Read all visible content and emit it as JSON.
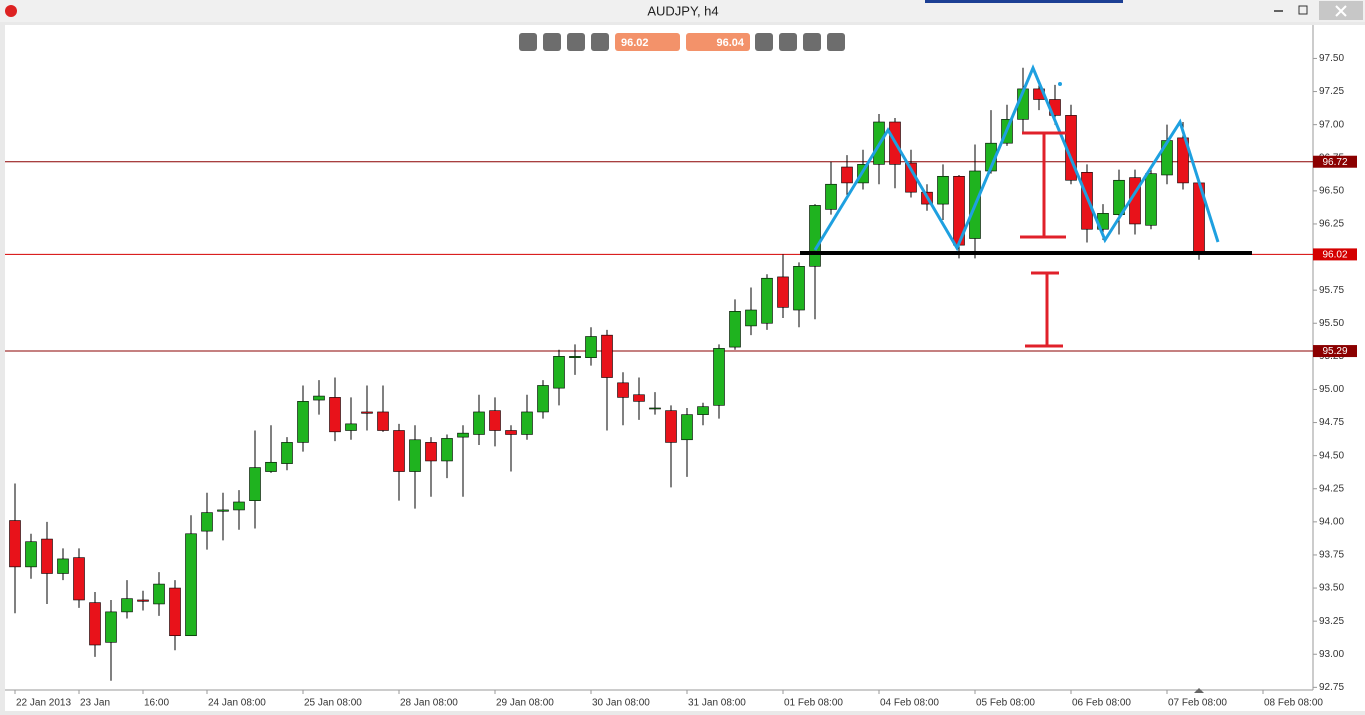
{
  "window": {
    "title": "AUDJPY, h4"
  },
  "toolbar": {
    "bid": "96.02",
    "ask": "96.04"
  },
  "chart_data": {
    "type": "candlestick",
    "categories": [
      "22 Jan 2013",
      null,
      null,
      null,
      "23 Jan",
      null,
      null,
      null,
      "16:00",
      null,
      null,
      null,
      "24 Jan 08:00",
      null,
      null,
      null,
      null,
      null,
      "25 Jan 08:00",
      null,
      null,
      null,
      null,
      null,
      "28 Jan 08:00",
      null,
      null,
      null,
      null,
      null,
      "29 Jan 08:00",
      null,
      null,
      null,
      null,
      null,
      "30 Jan 08:00",
      null,
      null,
      null,
      null,
      null,
      "31 Jan 08:00",
      null,
      null,
      null,
      null,
      null,
      "01 Feb 08:00",
      null,
      null,
      null,
      null,
      null,
      "04 Feb 08:00",
      null,
      null,
      null,
      null,
      null,
      "05 Feb 08:00",
      null,
      null,
      null,
      null,
      null,
      "06 Feb 08:00",
      null,
      null,
      null,
      null,
      null,
      "07 Feb 08:00",
      null,
      null,
      null,
      null,
      null,
      "08 Feb 08:00"
    ],
    "open": [
      94.01,
      93.66,
      93.87,
      93.61,
      93.73,
      93.39,
      93.09,
      93.32,
      93.41,
      93.38,
      93.5,
      93.14,
      93.93,
      94.08,
      94.09,
      94.16,
      94.38,
      94.44,
      94.6,
      94.92,
      94.94,
      94.69,
      94.83,
      94.83,
      94.69,
      94.38,
      94.6,
      94.46,
      94.64,
      94.66,
      94.84,
      94.69,
      94.66,
      94.83,
      95.01,
      95.24,
      95.24,
      95.41,
      95.05,
      94.96,
      94.86,
      94.84,
      94.62,
      94.81,
      94.88,
      95.32,
      95.48,
      95.5,
      95.85,
      95.6,
      95.93,
      96.36,
      96.68,
      96.56,
      96.7,
      97.02,
      96.71,
      96.49,
      96.4,
      96.61,
      96.14,
      96.65,
      96.86,
      97.04,
      97.27,
      97.19,
      97.07,
      96.64,
      96.21,
      96.32,
      96.6,
      96.24,
      96.62,
      96.9,
      96.56,
      null,
      null,
      null,
      null
    ],
    "high": [
      94.29,
      93.91,
      94.0,
      93.8,
      93.8,
      93.47,
      93.41,
      93.56,
      93.48,
      93.62,
      93.56,
      94.05,
      94.22,
      94.22,
      94.24,
      94.69,
      94.73,
      94.64,
      95.03,
      95.07,
      95.09,
      94.94,
      95.03,
      95.03,
      94.74,
      94.73,
      94.64,
      94.66,
      94.73,
      94.96,
      94.94,
      94.73,
      94.96,
      95.07,
      95.3,
      95.34,
      95.47,
      95.45,
      95.13,
      95.09,
      94.98,
      94.88,
      94.86,
      94.9,
      95.34,
      95.68,
      95.77,
      95.87,
      96.02,
      95.96,
      96.4,
      96.72,
      96.77,
      96.81,
      97.08,
      97.05,
      96.81,
      96.55,
      96.7,
      96.62,
      96.85,
      97.11,
      97.15,
      97.43,
      97.34,
      97.3,
      97.15,
      96.7,
      96.4,
      96.66,
      96.66,
      96.66,
      97.0,
      97.02,
      96.56,
      null,
      null,
      null,
      null
    ],
    "low": [
      93.31,
      93.57,
      93.38,
      93.56,
      93.35,
      92.98,
      92.8,
      93.27,
      93.33,
      93.29,
      93.03,
      93.14,
      93.79,
      93.86,
      93.94,
      93.95,
      94.37,
      94.39,
      94.53,
      94.81,
      94.61,
      94.62,
      94.69,
      94.68,
      94.16,
      94.1,
      94.19,
      94.33,
      94.19,
      94.58,
      94.57,
      94.38,
      94.62,
      94.78,
      94.88,
      95.11,
      95.18,
      94.69,
      94.73,
      94.77,
      94.81,
      94.26,
      94.34,
      94.73,
      94.78,
      95.3,
      95.41,
      95.45,
      95.54,
      95.47,
      95.53,
      96.32,
      96.47,
      96.51,
      96.55,
      96.52,
      96.45,
      96.35,
      96.28,
      95.99,
      95.99,
      96.63,
      96.84,
      96.94,
      97.11,
      97.0,
      96.55,
      96.11,
      96.13,
      96.17,
      96.17,
      96.21,
      96.55,
      96.51,
      95.98,
      null,
      null,
      null,
      null
    ],
    "close": [
      93.66,
      93.85,
      93.61,
      93.72,
      93.41,
      93.07,
      93.32,
      93.42,
      93.4,
      93.53,
      93.14,
      93.91,
      94.07,
      94.09,
      94.15,
      94.41,
      94.45,
      94.6,
      94.91,
      94.95,
      94.68,
      94.74,
      94.82,
      94.69,
      94.38,
      94.62,
      94.46,
      94.63,
      94.67,
      94.83,
      94.69,
      94.66,
      94.83,
      95.03,
      95.25,
      95.25,
      95.4,
      95.09,
      94.94,
      94.91,
      94.86,
      94.6,
      94.81,
      94.87,
      95.31,
      95.59,
      95.6,
      95.84,
      95.62,
      95.93,
      96.39,
      96.55,
      96.56,
      96.7,
      97.02,
      96.7,
      96.49,
      96.4,
      96.61,
      96.09,
      96.65,
      96.86,
      97.04,
      97.27,
      97.19,
      97.07,
      96.58,
      96.21,
      96.33,
      96.58,
      96.25,
      96.63,
      96.88,
      96.56,
      96.02,
      null,
      null,
      null,
      null
    ],
    "up_color": "#1fb31f",
    "down_color": "#e8121a",
    "ylim": [
      92.73,
      97.73
    ],
    "yticks": [
      {
        "value": 97.5,
        "label": "97.50"
      },
      97.25,
      {
        "value": 97,
        "label": "97.00"
      },
      96.75,
      {
        "value": 96.5,
        "label": "96.50"
      },
      96.25,
      {
        "value": 96,
        "label": "96.00"
      },
      95.75,
      {
        "value": 95.5,
        "label": "95.50"
      },
      95.25,
      {
        "value": 95,
        "label": "95.00"
      },
      94.75,
      {
        "value": 94.5,
        "label": "94.50"
      },
      94.25,
      {
        "value": 94,
        "label": "94.00"
      },
      93.75,
      {
        "value": 93.5,
        "label": "93.50"
      },
      93.25,
      {
        "value": 93,
        "label": "93.00"
      },
      92.75
    ],
    "hlines": [
      96.72,
      96.02,
      95.29
    ],
    "hline_colors": [
      "#8b0000",
      "#d40000",
      "#8b0000"
    ],
    "grid": false
  }
}
